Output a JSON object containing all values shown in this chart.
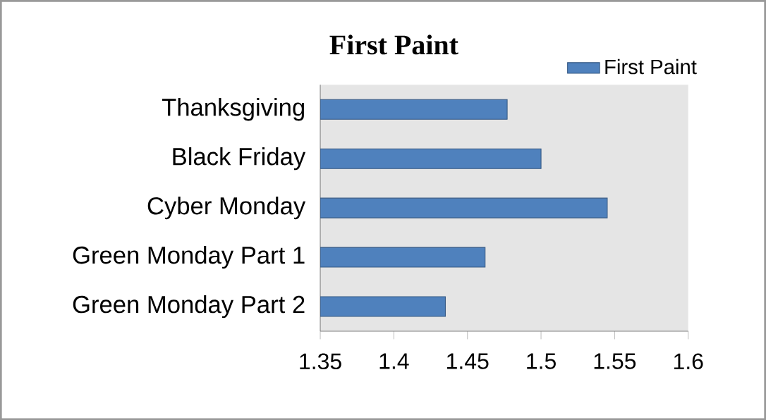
{
  "chart_data": {
    "type": "bar",
    "orientation": "horizontal",
    "title": "First Paint",
    "categories": [
      "Thanksgiving",
      "Black Friday",
      "Cyber Monday",
      "Green Monday Part 1",
      "Green Monday Part 2"
    ],
    "series": [
      {
        "name": "First Paint",
        "color": "#4f81bd",
        "values": [
          1.477,
          1.5,
          1.545,
          1.462,
          1.435
        ]
      }
    ],
    "xlim": [
      1.35,
      1.6
    ],
    "xticks": [
      1.35,
      1.4,
      1.45,
      1.5,
      1.55,
      1.6
    ],
    "legend": "top right",
    "grid": false
  }
}
